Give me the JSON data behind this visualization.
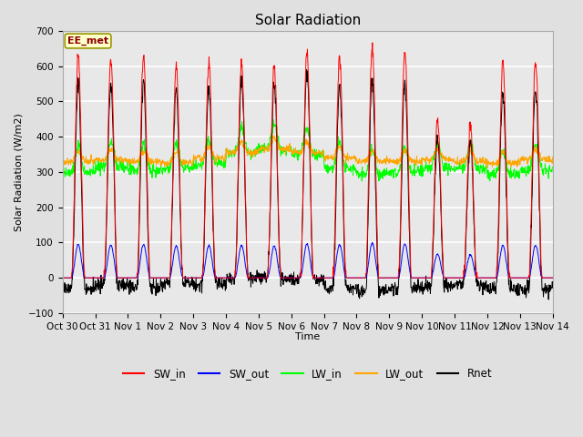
{
  "title": "Solar Radiation",
  "ylabel": "Solar Radiation (W/m2)",
  "xlabel": "Time",
  "ylim": [
    -100,
    700
  ],
  "fig_bg_color": "#e0e0e0",
  "plot_bg_color": "#e8e8e8",
  "grid_color": "white",
  "legend_labels": [
    "SW_in",
    "SW_out",
    "LW_in",
    "LW_out",
    "Rnet"
  ],
  "line_colors": [
    "red",
    "blue",
    "lime",
    "orange",
    "black"
  ],
  "annotation_text": "EE_met",
  "annotation_bg": "#ffffcc",
  "annotation_border": "#999900",
  "x_tick_labels": [
    "Oct 30",
    "Oct 31",
    "Nov 1",
    "Nov 2",
    "Nov 3",
    "Nov 4",
    "Nov 5",
    "Nov 6",
    "Nov 7",
    "Nov 8",
    "Nov 9",
    "Nov 10",
    "Nov 11",
    "Nov 12",
    "Nov 13",
    "Nov 14"
  ],
  "n_days": 15,
  "dt_minutes": 15,
  "seed": 42
}
